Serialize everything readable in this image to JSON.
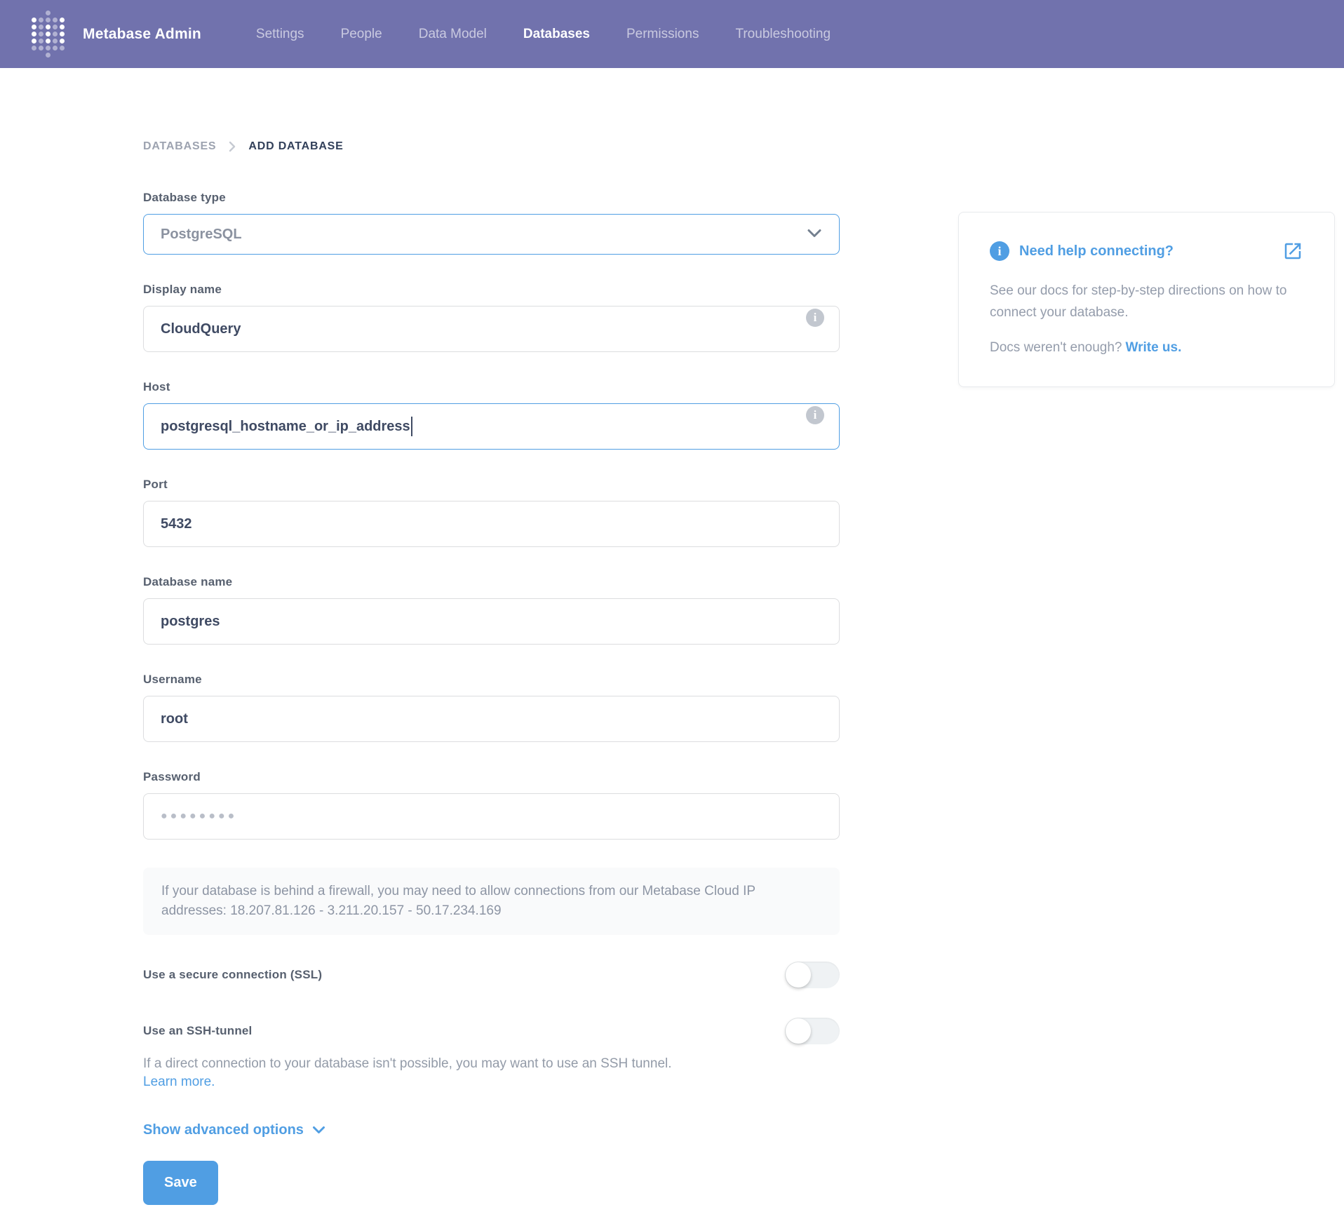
{
  "nav": {
    "brand": "Metabase Admin",
    "logo_icon": "metabase-dot-grid",
    "tabs": [
      {
        "label": "Settings",
        "active": false
      },
      {
        "label": "People",
        "active": false
      },
      {
        "label": "Data Model",
        "active": false
      },
      {
        "label": "Databases",
        "active": true
      },
      {
        "label": "Permissions",
        "active": false
      },
      {
        "label": "Troubleshooting",
        "active": false
      }
    ]
  },
  "breadcrumb": {
    "parent": "DATABASES",
    "current": "ADD DATABASE"
  },
  "form": {
    "database_type": {
      "label": "Database type",
      "value": "PostgreSQL"
    },
    "display_name": {
      "label": "Display name",
      "value": "CloudQuery"
    },
    "host": {
      "label": "Host",
      "value": "postgresql_hostname_or_ip_address"
    },
    "port": {
      "label": "Port",
      "value": "5432"
    },
    "database_name": {
      "label": "Database name",
      "value": "postgres"
    },
    "username": {
      "label": "Username",
      "value": "root"
    },
    "password": {
      "label": "Password",
      "value": "●●●●●●●●"
    },
    "firewall_notice": "If your database is behind a firewall, you may need to allow connections from our Metabase Cloud IP addresses: 18.207.81.126 - 3.211.20.157 - 50.17.234.169",
    "ssl_toggle": {
      "label": "Use a secure connection (SSL)",
      "enabled": false
    },
    "ssh_toggle": {
      "label": "Use an SSH-tunnel",
      "enabled": false,
      "description": "If a direct connection to your database isn't possible, you may want to use an SSH tunnel.",
      "link_label": "Learn more."
    },
    "advanced_options_label": "Show advanced options",
    "save_label": "Save"
  },
  "help_card": {
    "title": "Need help connecting?",
    "body": "See our docs for step-by-step directions on how to connect your database.",
    "footer_text": "Docs weren't enough?",
    "footer_link": "Write us."
  },
  "icons": {
    "info": "i",
    "chevron_down": "v-chevron",
    "breadcrumb_chevron": ">",
    "external_link": "open-in-new"
  },
  "colors": {
    "nav_background": "#7172AD",
    "accent_blue": "#509EE3",
    "label_text": "#57606F",
    "value_text": "#3F4A63",
    "muted_text": "#949CAB",
    "field_border": "#DCDDDF",
    "notice_background": "#F9FAFB"
  }
}
